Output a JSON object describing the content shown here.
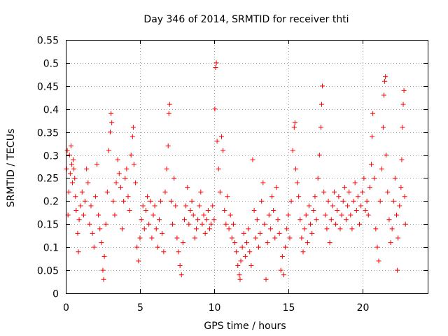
{
  "chart_data": {
    "type": "scatter",
    "title": "Day 346 of 2014, SRMTID for receiver thti",
    "xlabel": "GPS time / hours",
    "ylabel": "SRMTID / TECUs",
    "xlim": [
      0,
      24.4
    ],
    "ylim": [
      0,
      0.55
    ],
    "xticks": [
      0,
      5,
      10,
      15,
      20
    ],
    "yticks": [
      0,
      0.05,
      0.1,
      0.15,
      0.2,
      0.25,
      0.3,
      0.35,
      0.4,
      0.45,
      0.5,
      0.55
    ],
    "x_tick_labels": [
      "0",
      "5",
      "10",
      "15",
      "20"
    ],
    "y_tick_labels": [
      "0",
      "0.05",
      "0.1",
      "0.15",
      "0.2",
      "0.25",
      "0.3",
      "0.35",
      "0.4",
      "0.45",
      "0.5",
      "0.55"
    ],
    "grid": true,
    "legend": "none",
    "marker": "+",
    "series": [
      {
        "name": "SRMTID",
        "color": "#ff0000",
        "points": [
          [
            0.05,
            0.27
          ],
          [
            0.1,
            0.31
          ],
          [
            0.15,
            0.17
          ],
          [
            0.2,
            0.22
          ],
          [
            0.25,
            0.3
          ],
          [
            0.3,
            0.26
          ],
          [
            0.35,
            0.32
          ],
          [
            0.4,
            0.28
          ],
          [
            0.45,
            0.24
          ],
          [
            0.5,
            0.29
          ],
          [
            0.55,
            0.27
          ],
          [
            0.6,
            0.25
          ],
          [
            0.65,
            0.21
          ],
          [
            0.7,
            0.18
          ],
          [
            0.8,
            0.13
          ],
          [
            0.85,
            0.09
          ],
          [
            0.9,
            0.16
          ],
          [
            1.0,
            0.19
          ],
          [
            1.1,
            0.22
          ],
          [
            1.2,
            0.17
          ],
          [
            1.3,
            0.2
          ],
          [
            1.4,
            0.27
          ],
          [
            1.5,
            0.24
          ],
          [
            1.6,
            0.15
          ],
          [
            1.7,
            0.19
          ],
          [
            1.8,
            0.13
          ],
          [
            1.9,
            0.1
          ],
          [
            2.0,
            0.21
          ],
          [
            2.1,
            0.28
          ],
          [
            2.2,
            0.17
          ],
          [
            2.3,
            0.14
          ],
          [
            2.4,
            0.11
          ],
          [
            2.5,
            0.05
          ],
          [
            2.55,
            0.03
          ],
          [
            2.6,
            0.08
          ],
          [
            2.7,
            0.15
          ],
          [
            2.8,
            0.22
          ],
          [
            2.9,
            0.31
          ],
          [
            3.0,
            0.35
          ],
          [
            3.05,
            0.39
          ],
          [
            3.1,
            0.37
          ],
          [
            3.2,
            0.2
          ],
          [
            3.3,
            0.17
          ],
          [
            3.4,
            0.24
          ],
          [
            3.5,
            0.29
          ],
          [
            3.6,
            0.26
          ],
          [
            3.7,
            0.23
          ],
          [
            3.8,
            0.14
          ],
          [
            3.9,
            0.2
          ],
          [
            4.0,
            0.25
          ],
          [
            4.1,
            0.27
          ],
          [
            4.2,
            0.21
          ],
          [
            4.3,
            0.18
          ],
          [
            4.4,
            0.3
          ],
          [
            4.5,
            0.34
          ],
          [
            4.55,
            0.36
          ],
          [
            4.6,
            0.28
          ],
          [
            4.7,
            0.24
          ],
          [
            4.8,
            0.1
          ],
          [
            4.9,
            0.07
          ],
          [
            5.0,
            0.12
          ],
          [
            5.1,
            0.16
          ],
          [
            5.2,
            0.19
          ],
          [
            5.3,
            0.14
          ],
          [
            5.4,
            0.18
          ],
          [
            5.5,
            0.21
          ],
          [
            5.6,
            0.15
          ],
          [
            5.7,
            0.2
          ],
          [
            5.8,
            0.12
          ],
          [
            5.9,
            0.17
          ],
          [
            6.0,
            0.19
          ],
          [
            6.1,
            0.14
          ],
          [
            6.2,
            0.1
          ],
          [
            6.3,
            0.16
          ],
          [
            6.4,
            0.2
          ],
          [
            6.5,
            0.13
          ],
          [
            6.6,
            0.09
          ],
          [
            6.7,
            0.22
          ],
          [
            6.8,
            0.27
          ],
          [
            6.9,
            0.32
          ],
          [
            6.95,
            0.39
          ],
          [
            7.0,
            0.41
          ],
          [
            7.1,
            0.2
          ],
          [
            7.2,
            0.15
          ],
          [
            7.3,
            0.25
          ],
          [
            7.4,
            0.19
          ],
          [
            7.5,
            0.12
          ],
          [
            7.6,
            0.09
          ],
          [
            7.7,
            0.06
          ],
          [
            7.8,
            0.04
          ],
          [
            7.9,
            0.11
          ],
          [
            8.0,
            0.16
          ],
          [
            8.1,
            0.19
          ],
          [
            8.2,
            0.23
          ],
          [
            8.3,
            0.15
          ],
          [
            8.4,
            0.18
          ],
          [
            8.5,
            0.2
          ],
          [
            8.6,
            0.17
          ],
          [
            8.7,
            0.12
          ],
          [
            8.8,
            0.14
          ],
          [
            8.9,
            0.16
          ],
          [
            9.0,
            0.19
          ],
          [
            9.1,
            0.22
          ],
          [
            9.2,
            0.15
          ],
          [
            9.3,
            0.17
          ],
          [
            9.4,
            0.13
          ],
          [
            9.5,
            0.16
          ],
          [
            9.6,
            0.18
          ],
          [
            9.7,
            0.14
          ],
          [
            9.8,
            0.15
          ],
          [
            9.9,
            0.19
          ],
          [
            10.0,
            0.16
          ],
          [
            10.05,
            0.4
          ],
          [
            10.1,
            0.49
          ],
          [
            10.15,
            0.5
          ],
          [
            10.2,
            0.33
          ],
          [
            10.3,
            0.27
          ],
          [
            10.4,
            0.22
          ],
          [
            10.5,
            0.34
          ],
          [
            10.6,
            0.31
          ],
          [
            10.7,
            0.18
          ],
          [
            10.8,
            0.15
          ],
          [
            10.9,
            0.21
          ],
          [
            11.0,
            0.14
          ],
          [
            11.1,
            0.17
          ],
          [
            11.2,
            0.12
          ],
          [
            11.3,
            0.15
          ],
          [
            11.4,
            0.11
          ],
          [
            11.5,
            0.09
          ],
          [
            11.6,
            0.06
          ],
          [
            11.7,
            0.04
          ],
          [
            11.75,
            0.03
          ],
          [
            11.8,
            0.07
          ],
          [
            11.9,
            0.1
          ],
          [
            12.0,
            0.13
          ],
          [
            12.1,
            0.08
          ],
          [
            12.2,
            0.11
          ],
          [
            12.3,
            0.14
          ],
          [
            12.4,
            0.09
          ],
          [
            12.5,
            0.06
          ],
          [
            12.6,
            0.29
          ],
          [
            12.7,
            0.18
          ],
          [
            12.8,
            0.12
          ],
          [
            12.9,
            0.16
          ],
          [
            13.0,
            0.1
          ],
          [
            13.1,
            0.13
          ],
          [
            13.2,
            0.2
          ],
          [
            13.3,
            0.24
          ],
          [
            13.4,
            0.15
          ],
          [
            13.5,
            0.03
          ],
          [
            13.6,
            0.11
          ],
          [
            13.7,
            0.17
          ],
          [
            13.8,
            0.14
          ],
          [
            13.9,
            0.21
          ],
          [
            14.0,
            0.18
          ],
          [
            14.1,
            0.12
          ],
          [
            14.2,
            0.23
          ],
          [
            14.3,
            0.16
          ],
          [
            14.4,
            0.13
          ],
          [
            14.5,
            0.05
          ],
          [
            14.6,
            0.08
          ],
          [
            14.7,
            0.04
          ],
          [
            14.8,
            0.1
          ],
          [
            14.9,
            0.14
          ],
          [
            15.0,
            0.17
          ],
          [
            15.1,
            0.12
          ],
          [
            15.2,
            0.2
          ],
          [
            15.3,
            0.31
          ],
          [
            15.4,
            0.36
          ],
          [
            15.45,
            0.37
          ],
          [
            15.5,
            0.27
          ],
          [
            15.6,
            0.24
          ],
          [
            15.7,
            0.21
          ],
          [
            15.8,
            0.16
          ],
          [
            15.9,
            0.12
          ],
          [
            16.0,
            0.09
          ],
          [
            16.1,
            0.14
          ],
          [
            16.2,
            0.17
          ],
          [
            16.3,
            0.11
          ],
          [
            16.4,
            0.19
          ],
          [
            16.5,
            0.15
          ],
          [
            16.6,
            0.13
          ],
          [
            16.7,
            0.18
          ],
          [
            16.8,
            0.21
          ],
          [
            16.9,
            0.16
          ],
          [
            17.0,
            0.25
          ],
          [
            17.1,
            0.3
          ],
          [
            17.2,
            0.36
          ],
          [
            17.25,
            0.41
          ],
          [
            17.3,
            0.45
          ],
          [
            17.4,
            0.22
          ],
          [
            17.5,
            0.17
          ],
          [
            17.6,
            0.14
          ],
          [
            17.7,
            0.2
          ],
          [
            17.8,
            0.11
          ],
          [
            17.9,
            0.16
          ],
          [
            18.0,
            0.19
          ],
          [
            18.1,
            0.22
          ],
          [
            18.2,
            0.15
          ],
          [
            18.3,
            0.18
          ],
          [
            18.4,
            0.21
          ],
          [
            18.5,
            0.14
          ],
          [
            18.6,
            0.17
          ],
          [
            18.7,
            0.2
          ],
          [
            18.8,
            0.23
          ],
          [
            18.9,
            0.16
          ],
          [
            19.0,
            0.19
          ],
          [
            19.1,
            0.22
          ],
          [
            19.2,
            0.17
          ],
          [
            19.3,
            0.14
          ],
          [
            19.4,
            0.2
          ],
          [
            19.5,
            0.24
          ],
          [
            19.6,
            0.18
          ],
          [
            19.7,
            0.21
          ],
          [
            19.8,
            0.15
          ],
          [
            19.9,
            0.19
          ],
          [
            20.0,
            0.22
          ],
          [
            20.1,
            0.25
          ],
          [
            20.2,
            0.18
          ],
          [
            20.3,
            0.2
          ],
          [
            20.4,
            0.17
          ],
          [
            20.5,
            0.23
          ],
          [
            20.6,
            0.28
          ],
          [
            20.65,
            0.34
          ],
          [
            20.7,
            0.39
          ],
          [
            20.8,
            0.25
          ],
          [
            20.9,
            0.14
          ],
          [
            21.0,
            0.1
          ],
          [
            21.1,
            0.07
          ],
          [
            21.2,
            0.2
          ],
          [
            21.3,
            0.27
          ],
          [
            21.4,
            0.36
          ],
          [
            21.45,
            0.43
          ],
          [
            21.5,
            0.46
          ],
          [
            21.55,
            0.47
          ],
          [
            21.6,
            0.3
          ],
          [
            21.7,
            0.22
          ],
          [
            21.8,
            0.16
          ],
          [
            21.9,
            0.11
          ],
          [
            22.0,
            0.14
          ],
          [
            22.1,
            0.2
          ],
          [
            22.2,
            0.25
          ],
          [
            22.3,
            0.17
          ],
          [
            22.35,
            0.05
          ],
          [
            22.4,
            0.12
          ],
          [
            22.5,
            0.19
          ],
          [
            22.6,
            0.23
          ],
          [
            22.65,
            0.29
          ],
          [
            22.7,
            0.36
          ],
          [
            22.75,
            0.41
          ],
          [
            22.8,
            0.44
          ],
          [
            22.85,
            0.21
          ],
          [
            22.9,
            0.15
          ]
        ]
      }
    ]
  }
}
